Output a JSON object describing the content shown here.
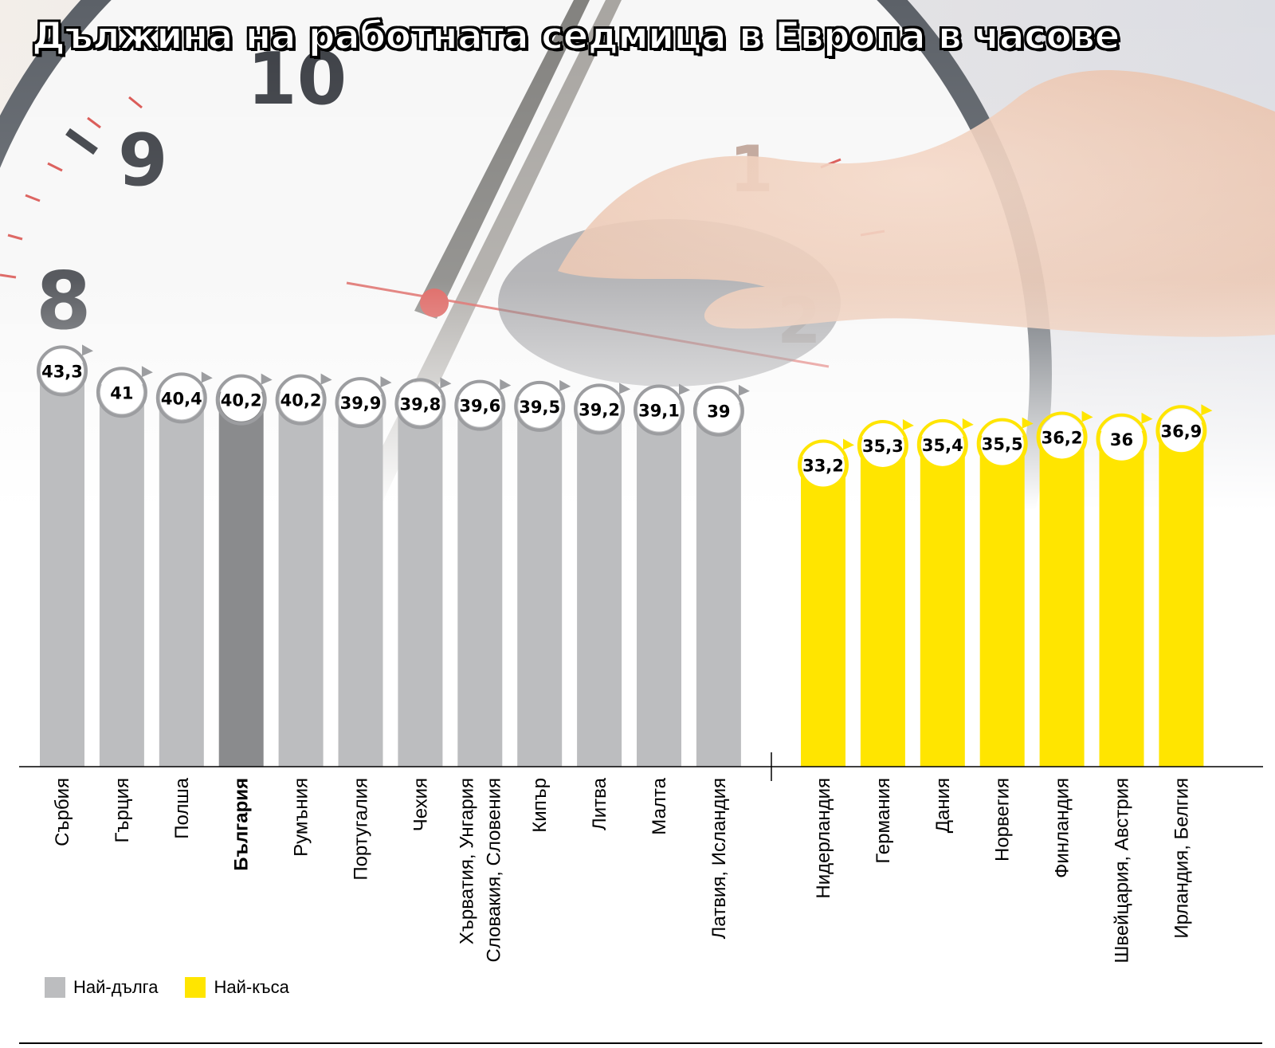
{
  "colors": {
    "long": "#bcbdbf",
    "long_highlight": "#8a8b8d",
    "short": "#ffe500",
    "axis": "#000000",
    "label_circle_fill": "#ffffff",
    "label_ring_long": "#9c9da0",
    "label_ring_short": "#ffe500"
  },
  "background": {
    "clock_numerals": [
      "10",
      "9",
      "8",
      "1",
      "2"
    ],
    "icons": [
      "wall-clock-image",
      "hand-on-mouse-image"
    ]
  },
  "legend": {
    "long_label": "Най-дълга",
    "short_label": "Най-къса"
  },
  "chart_data": {
    "type": "bar",
    "title": "Дължина на работната седмица в Европа в часове",
    "xlabel": "",
    "ylabel": "",
    "ylim": [
      0,
      45
    ],
    "grid": false,
    "legend_position": "bottom-left",
    "highlight_category": "България",
    "groups": [
      {
        "name": "Най-дълга",
        "categories": [
          "Сърбия",
          "Гърция",
          "Полша",
          "България",
          "Румъния",
          "Португалия",
          "Чехия",
          "Хърватия, Унгария Словакия, Словения",
          "Кипър",
          "Литва",
          "Малта",
          "Латвия, Исландия"
        ],
        "values": [
          43.3,
          41,
          40.4,
          40.2,
          40.2,
          39.9,
          39.8,
          39.6,
          39.5,
          39.2,
          39.1,
          39
        ],
        "value_labels": [
          "43,3",
          "41",
          "40,4",
          "40,2",
          "40,2",
          "39,9",
          "39,8",
          "39,6",
          "39,5",
          "39,2",
          "39,1",
          "39"
        ]
      },
      {
        "name": "Най-къса",
        "categories": [
          "Нидерландия",
          "Германия",
          "Дания",
          "Норвегия",
          "Финландия",
          "Швейцария, Австрия",
          "Ирландия, Белгия"
        ],
        "values": [
          33.2,
          35.3,
          35.4,
          35.5,
          36.2,
          36,
          36.9
        ],
        "value_labels": [
          "33,2",
          "35,3",
          "35,4",
          "35,5",
          "36,2",
          "36",
          "36,9"
        ]
      }
    ]
  }
}
